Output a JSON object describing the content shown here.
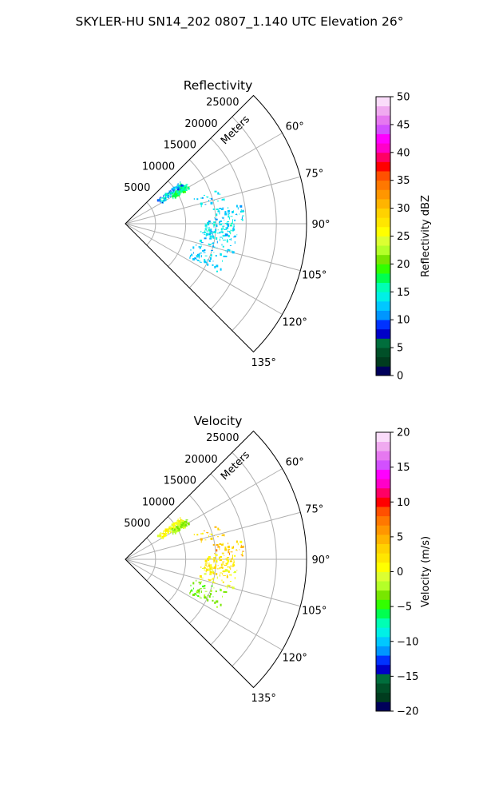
{
  "figure": {
    "suptitle": "SKYLER-HU  SN14_202  0807_1.140 UTC Elevation 26°"
  },
  "chart_data": [
    {
      "type": "heatmap",
      "projection": "polar-sector",
      "title": "Reflectivity",
      "radial_axis_label": "Meters",
      "radial_ticks": [
        "5000",
        "10000",
        "15000",
        "20000",
        "25000"
      ],
      "radial_tick_values": [
        5000,
        10000,
        15000,
        20000,
        25000
      ],
      "r_max": 30000,
      "azimuth_ticks": [
        "60°",
        "75°",
        "90°",
        "105°",
        "120°",
        "135°"
      ],
      "azimuth_tick_values": [
        60,
        75,
        90,
        105,
        120,
        135
      ],
      "theta_range_deg": [
        45,
        135
      ],
      "grid": true,
      "colorbar": {
        "label": "Reflectivity dBZ",
        "ticks": [
          "0",
          "5",
          "10",
          "15",
          "20",
          "25",
          "30",
          "35",
          "40",
          "45",
          "50"
        ],
        "range": [
          0,
          50
        ]
      },
      "clusters": [
        {
          "az": 55.5,
          "r": 9000,
          "daz": 3.5,
          "dr": 2500,
          "n": 120,
          "vmin": 8,
          "vmax": 17
        },
        {
          "az": 58.5,
          "r": 10500,
          "daz": 2.5,
          "dr": 1500,
          "n": 80,
          "vmin": 15,
          "vmax": 19
        },
        {
          "az": 73.0,
          "r": 14500,
          "daz": 3.5,
          "dr": 2500,
          "n": 22,
          "vmin": 11,
          "vmax": 15
        },
        {
          "az": 84.0,
          "r": 17000,
          "daz": 4.0,
          "dr": 2500,
          "n": 45,
          "vmin": 11,
          "vmax": 15
        },
        {
          "az": 92.0,
          "r": 15500,
          "daz": 4.5,
          "dr": 2500,
          "n": 80,
          "vmin": 11,
          "vmax": 16
        },
        {
          "az": 100.0,
          "r": 15500,
          "daz": 5.0,
          "dr": 3000,
          "n": 60,
          "vmin": 11,
          "vmax": 15
        },
        {
          "az": 112.0,
          "r": 14500,
          "daz": 6.0,
          "dr": 3000,
          "n": 55,
          "vmin": 11,
          "vmax": 14
        }
      ]
    },
    {
      "type": "heatmap",
      "projection": "polar-sector",
      "title": "Velocity",
      "radial_axis_label": "Meters",
      "radial_ticks": [
        "5000",
        "10000",
        "15000",
        "20000",
        "25000"
      ],
      "radial_tick_values": [
        5000,
        10000,
        15000,
        20000,
        25000
      ],
      "r_max": 30000,
      "azimuth_ticks": [
        "60°",
        "75°",
        "90°",
        "105°",
        "120°",
        "135°"
      ],
      "azimuth_tick_values": [
        60,
        75,
        90,
        105,
        120,
        135
      ],
      "theta_range_deg": [
        45,
        135
      ],
      "grid": true,
      "colorbar": {
        "label": "Velocity (m/s)",
        "ticks": [
          "−20",
          "−15",
          "−10",
          "−5",
          "0",
          "5",
          "10",
          "15",
          "20"
        ],
        "range": [
          -20,
          20
        ]
      },
      "clusters": [
        {
          "az": 55.5,
          "r": 9000,
          "daz": 3.5,
          "dr": 2500,
          "n": 120,
          "vmin": -1,
          "vmax": 2
        },
        {
          "az": 58.5,
          "r": 10500,
          "daz": 2.5,
          "dr": 1500,
          "n": 80,
          "vmin": -4,
          "vmax": -1
        },
        {
          "az": 73.0,
          "r": 14500,
          "daz": 3.5,
          "dr": 2500,
          "n": 22,
          "vmin": 1,
          "vmax": 5
        },
        {
          "az": 84.0,
          "r": 17000,
          "daz": 4.0,
          "dr": 2500,
          "n": 45,
          "vmin": 0,
          "vmax": 7
        },
        {
          "az": 92.0,
          "r": 15500,
          "daz": 4.5,
          "dr": 2500,
          "n": 80,
          "vmin": 0,
          "vmax": 4
        },
        {
          "az": 100.0,
          "r": 15500,
          "daz": 5.0,
          "dr": 3000,
          "n": 60,
          "vmin": -1,
          "vmax": 3
        },
        {
          "az": 112.0,
          "r": 14500,
          "daz": 6.0,
          "dr": 3000,
          "n": 55,
          "vmin": -5,
          "vmax": -2
        }
      ]
    }
  ],
  "colormap": [
    "#00005a",
    "#003c1e",
    "#005028",
    "#006e3c",
    "#0000c8",
    "#0032ff",
    "#0096ff",
    "#00c8ff",
    "#00f0e6",
    "#00ffb4",
    "#00ff50",
    "#32ff00",
    "#78e600",
    "#b4ff28",
    "#dcff32",
    "#ffff00",
    "#ffe600",
    "#ffd200",
    "#ffb400",
    "#ff9600",
    "#ff7800",
    "#ff5000",
    "#ff0000",
    "#ff0064",
    "#ff00c8",
    "#ff00ff",
    "#d250ff",
    "#e678f0",
    "#f0aaf0",
    "#fadcfa"
  ]
}
